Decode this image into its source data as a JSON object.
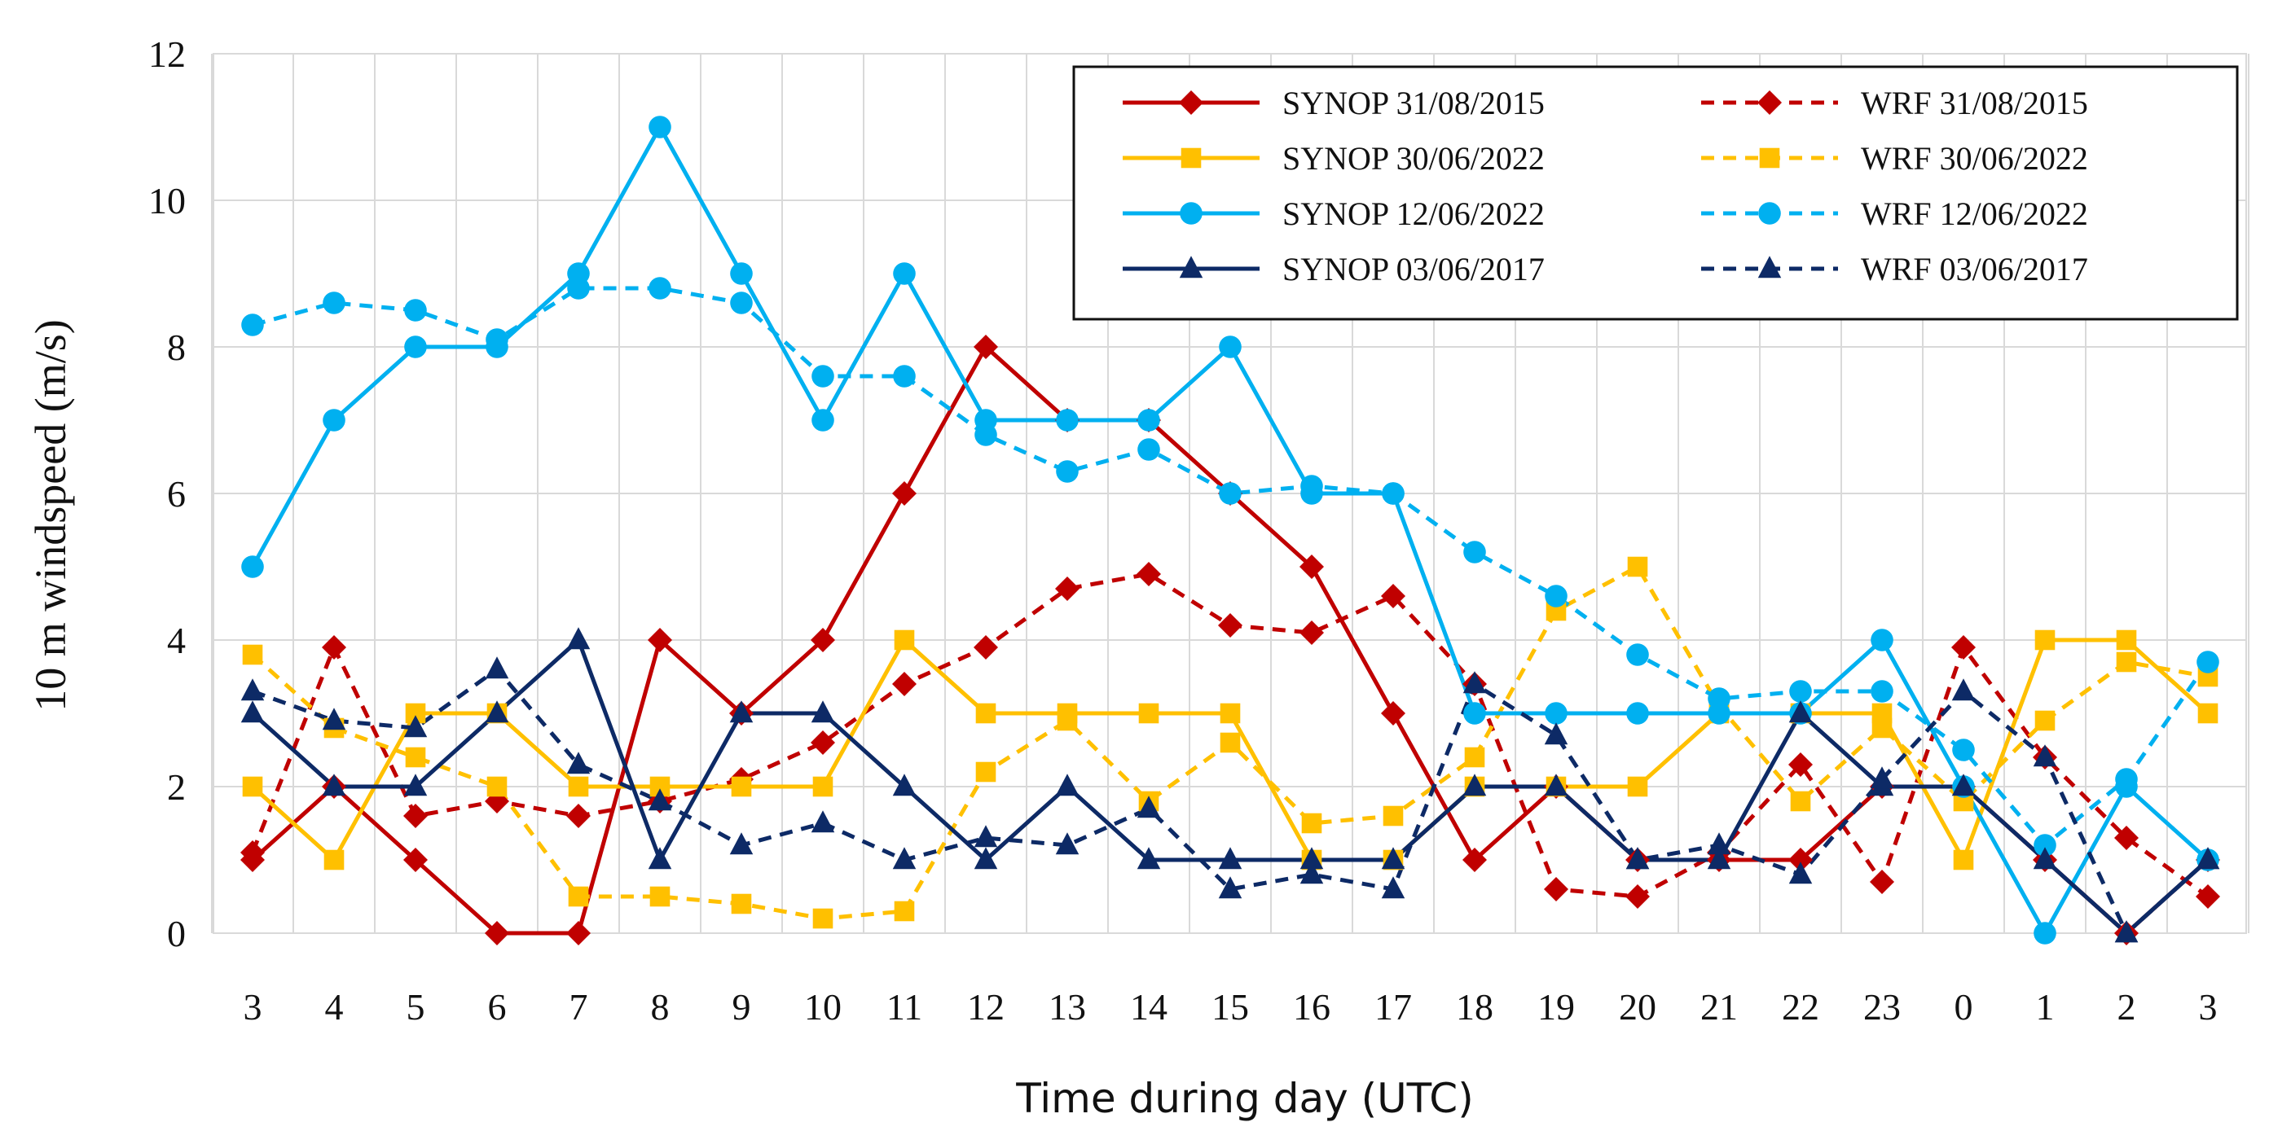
{
  "chart_data": {
    "type": "line",
    "title": "",
    "xlabel": "Time during day (UTC)",
    "ylabel": "10 m windspeed (m/s)",
    "categories": [
      "3",
      "4",
      "5",
      "6",
      "7",
      "8",
      "9",
      "10",
      "11",
      "12",
      "13",
      "14",
      "15",
      "16",
      "17",
      "18",
      "19",
      "20",
      "21",
      "22",
      "23",
      "0",
      "1",
      "2",
      "3"
    ],
    "ylim": [
      0,
      12
    ],
    "yticks": [
      0,
      2,
      4,
      6,
      8,
      10,
      12
    ],
    "grid": true,
    "legend_position": "top-right",
    "series": [
      {
        "name": "SYNOP 31/08/2015",
        "color": "#C00000",
        "dash": "solid",
        "marker": "diamond",
        "values": [
          1,
          2,
          1,
          0,
          0,
          4,
          3,
          4,
          6,
          8,
          7,
          7,
          6,
          5,
          3,
          1,
          2,
          1,
          1,
          1,
          2,
          2,
          1,
          0,
          1
        ]
      },
      {
        "name": "WRF 31/08/2015",
        "color": "#C00000",
        "dash": "dashed",
        "marker": "diamond",
        "values": [
          1.1,
          3.9,
          1.6,
          1.8,
          1.6,
          1.8,
          2.1,
          2.6,
          3.4,
          3.9,
          4.7,
          4.9,
          4.2,
          4.1,
          4.6,
          3.4,
          0.6,
          0.5,
          1.1,
          2.3,
          0.7,
          3.9,
          2.4,
          1.3,
          0.5
        ]
      },
      {
        "name": "SYNOP 30/06/2022",
        "color": "#FFC000",
        "dash": "solid",
        "marker": "square",
        "values": [
          2,
          1,
          3,
          3,
          2,
          2,
          2,
          2,
          4,
          3,
          3,
          3,
          3,
          1,
          1,
          2,
          2,
          2,
          3,
          3,
          3,
          1,
          4,
          4,
          3
        ]
      },
      {
        "name": "WRF 30/06/2022",
        "color": "#FFC000",
        "dash": "dashed",
        "marker": "square",
        "values": [
          3.8,
          2.8,
          2.4,
          2.0,
          0.5,
          0.5,
          0.4,
          0.2,
          0.3,
          2.2,
          2.9,
          1.8,
          2.6,
          1.5,
          1.6,
          2.4,
          4.4,
          5.0,
          3.1,
          1.8,
          2.8,
          1.8,
          2.9,
          3.7,
          3.5
        ]
      },
      {
        "name": "SYNOP 12/06/2022",
        "color": "#00B0F0",
        "dash": "solid",
        "marker": "circle",
        "values": [
          5,
          7,
          8,
          8,
          9,
          11,
          9,
          7,
          9,
          7,
          7,
          7,
          8,
          6,
          6,
          3,
          3,
          3,
          3,
          3,
          4,
          2,
          0,
          2,
          1
        ]
      },
      {
        "name": "WRF 12/06/2022",
        "color": "#00B0F0",
        "dash": "dashed",
        "marker": "circle",
        "values": [
          8.3,
          8.6,
          8.5,
          8.1,
          8.8,
          8.8,
          8.6,
          7.6,
          7.6,
          6.8,
          6.3,
          6.6,
          6.0,
          6.1,
          6.0,
          5.2,
          4.6,
          3.8,
          3.2,
          3.3,
          3.3,
          2.5,
          1.2,
          2.1,
          3.7
        ]
      },
      {
        "name": "SYNOP 03/06/2017",
        "color": "#0D2A66",
        "dash": "solid",
        "marker": "triangle",
        "values": [
          3,
          2,
          2,
          3,
          4,
          1,
          3,
          3,
          2,
          1,
          2,
          1,
          1,
          1,
          1,
          2,
          2,
          1,
          1,
          3,
          2,
          2,
          1,
          0,
          1
        ]
      },
      {
        "name": "WRF 03/06/2017",
        "color": "#0D2A66",
        "dash": "dashed",
        "marker": "triangle",
        "values": [
          3.3,
          2.9,
          2.8,
          3.6,
          2.3,
          1.8,
          1.2,
          1.5,
          1.0,
          1.3,
          1.2,
          1.7,
          0.6,
          0.8,
          0.6,
          3.4,
          2.7,
          1.0,
          1.2,
          0.8,
          2.1,
          3.3,
          2.4,
          0.0,
          1.0
        ]
      }
    ],
    "legend_layout": [
      [
        "SYNOP 31/08/2015",
        "WRF 31/08/2015"
      ],
      [
        "SYNOP 30/06/2022",
        "WRF 30/06/2022"
      ],
      [
        "SYNOP 12/06/2022",
        "WRF 12/06/2022"
      ],
      [
        "SYNOP 03/06/2017",
        "WRF 03/06/2017"
      ]
    ]
  }
}
